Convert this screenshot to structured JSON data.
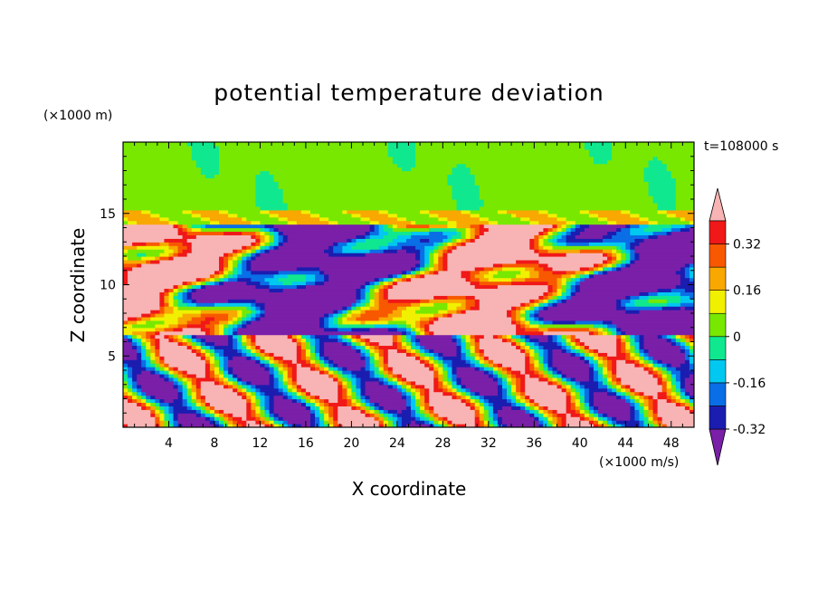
{
  "chart_data": {
    "type": "heatmap",
    "title": "potential temperature deviation",
    "xlabel": "X coordinate",
    "ylabel": "Z coordinate",
    "x_unit": "(×1000 m/s)",
    "y_unit": "(×1000 m)",
    "time_label": "t=108000 s",
    "xlim": [
      0,
      50
    ],
    "ylim": [
      0,
      20
    ],
    "x_ticks": [
      4,
      8,
      12,
      16,
      20,
      24,
      28,
      32,
      36,
      40,
      44,
      48
    ],
    "y_ticks": [
      5,
      10,
      15
    ],
    "colorbar": {
      "labels": [
        "0.32",
        "0.16",
        "0",
        "-0.16",
        "-0.32"
      ],
      "label_values": [
        0.32,
        0.16,
        0,
        -0.16,
        -0.32
      ],
      "levels": [
        -0.4,
        -0.32,
        -0.24,
        -0.16,
        -0.08,
        0,
        0.08,
        0.16,
        0.24,
        0.32,
        0.4
      ],
      "colors": [
        "#7a1fa8",
        "#1b1db0",
        "#0a6ee6",
        "#00c8f0",
        "#10e890",
        "#78e800",
        "#f0f000",
        "#f8a800",
        "#f85800",
        "#f01818",
        "#f8b4b4"
      ]
    }
  }
}
